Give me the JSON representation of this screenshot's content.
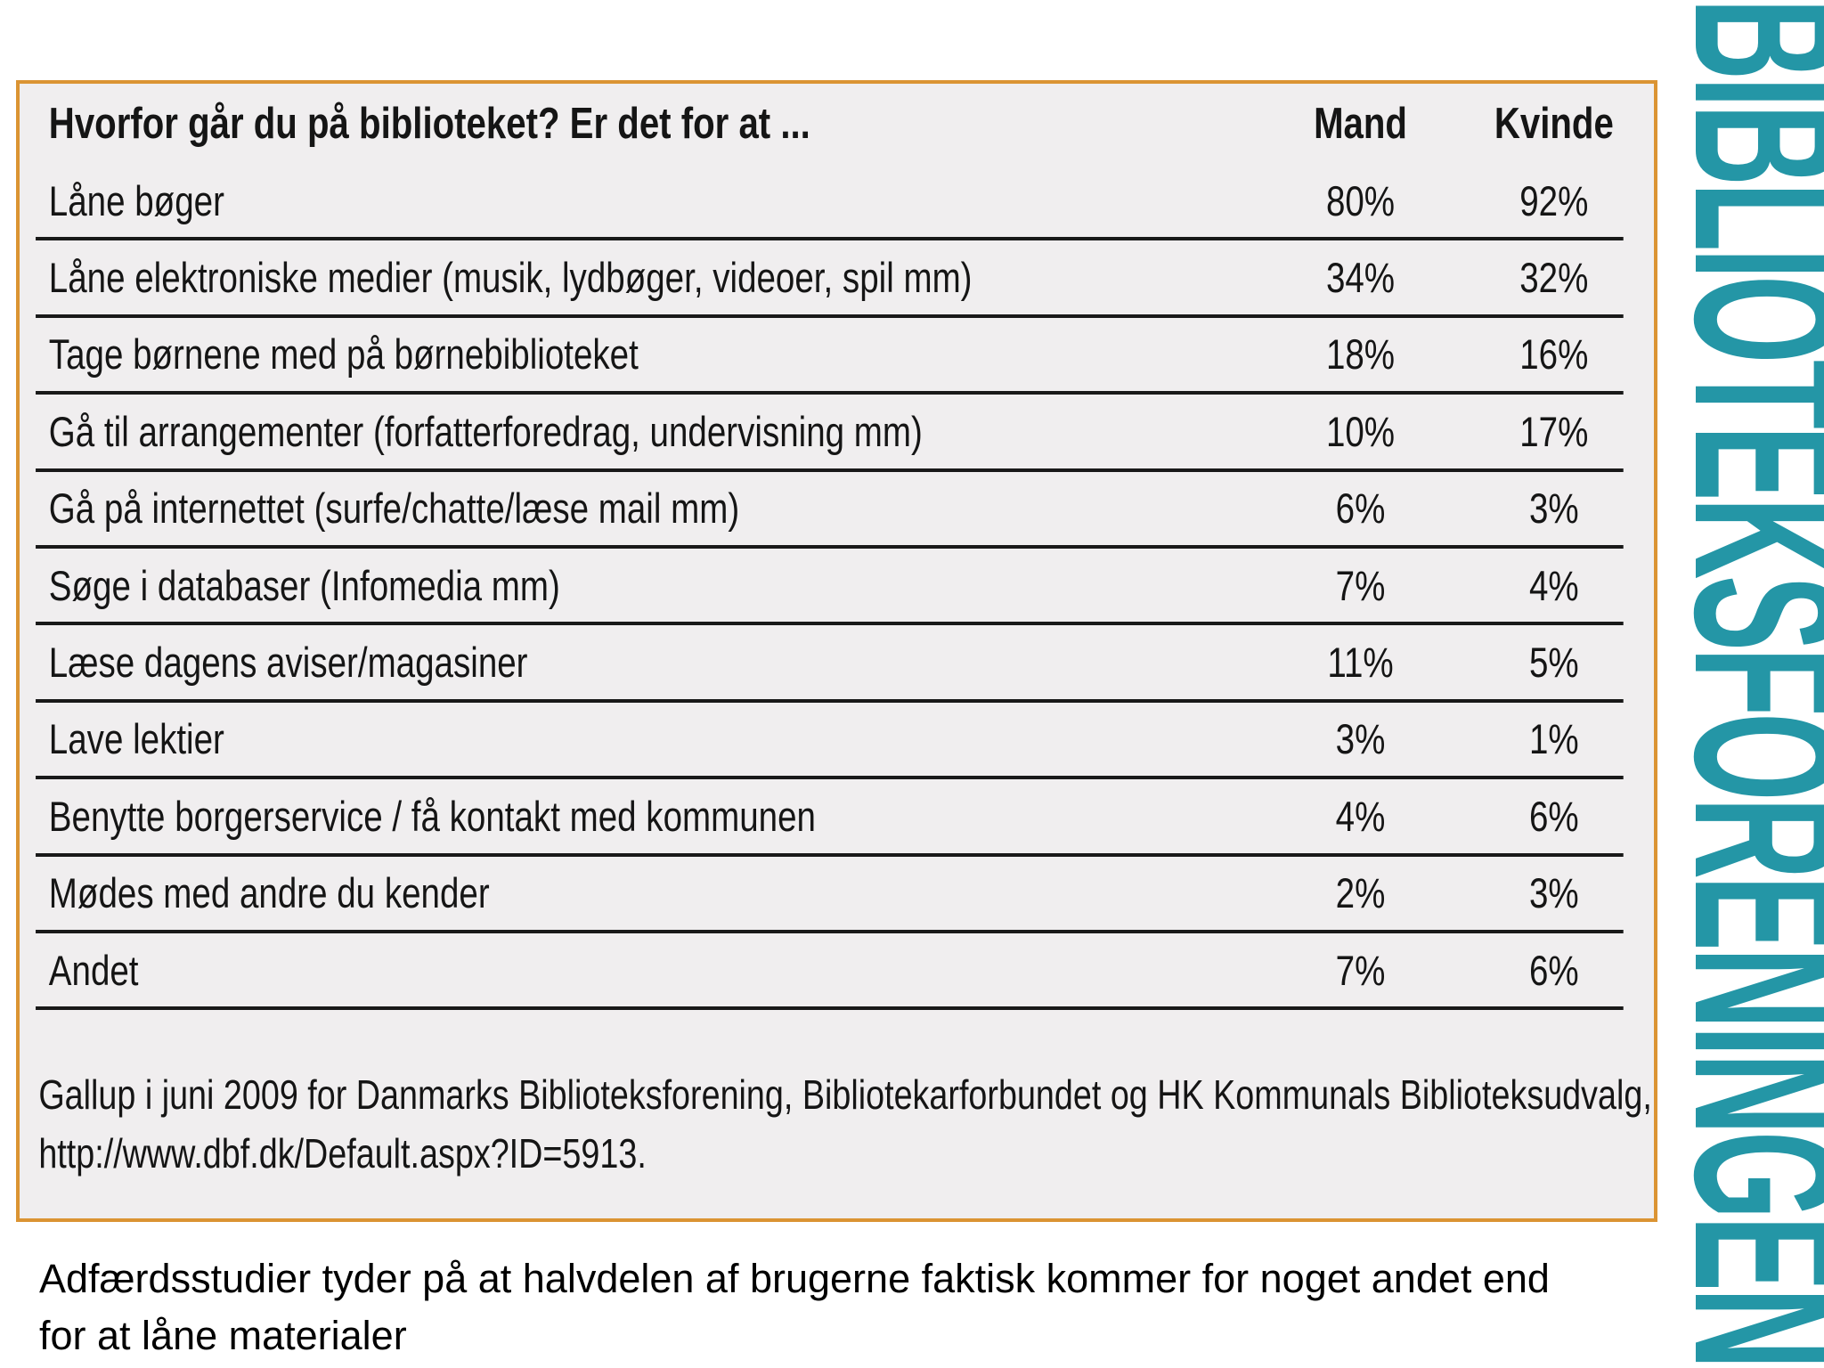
{
  "slide": {
    "table": {
      "title": "Hvorfor går du på biblioteket? Er det for at ...",
      "columns": [
        "Mand",
        "Kvinde"
      ],
      "rows": [
        {
          "label": "Låne bøger",
          "mand": "80%",
          "kvinde": "92%"
        },
        {
          "label": "Låne elektroniske medier (musik, lydbøger, videoer, spil mm)",
          "mand": "34%",
          "kvinde": "32%"
        },
        {
          "label": "Tage børnene med på børnebiblioteket",
          "mand": "18%",
          "kvinde": "16%"
        },
        {
          "label": "Gå til arrangementer (forfatterforedrag, undervisning mm)",
          "mand": "10%",
          "kvinde": "17%"
        },
        {
          "label": "Gå på internettet (surfe/chatte/læse mail mm)",
          "mand": "6%",
          "kvinde": "3%"
        },
        {
          "label": "Søge i databaser (Infomedia mm)",
          "mand": "7%",
          "kvinde": "4%"
        },
        {
          "label": "Læse dagens aviser/magasiner",
          "mand": "11%",
          "kvinde": "5%"
        },
        {
          "label": "Lave lektier",
          "mand": "3%",
          "kvinde": "1%"
        },
        {
          "label": "Benytte borgerservice / få kontakt med kommunen",
          "mand": "4%",
          "kvinde": "6%"
        },
        {
          "label": "Mødes med andre du kender",
          "mand": "2%",
          "kvinde": "3%"
        },
        {
          "label": "Andet",
          "mand": "7%",
          "kvinde": "6%"
        }
      ],
      "source_line1": "Gallup i juni 2009 for Danmarks Biblioteksforening, Bibliotekarforbundet og HK Kommunals Biblioteksudvalg,",
      "source_line2": "http://www.dbf.dk/Default.aspx?ID=5913."
    },
    "caption_line1": "Adfærdsstudier tyder på at halvdelen af brugerne faktisk kommer for noget andet end",
    "caption_line2": "for at låne materialer",
    "logo_text": "BIBLIOTEKSFORENINGEN",
    "colors": {
      "teal": "#2496a6",
      "orange_border": "#db9433",
      "table_bg": "#f0eeef",
      "row_line": "#191919"
    }
  },
  "chart_data": {
    "type": "table",
    "title": "Hvorfor går du på biblioteket? Er det for at ...",
    "columns": [
      "Mand",
      "Kvinde"
    ],
    "categories": [
      "Låne bøger",
      "Låne elektroniske medier (musik, lydbøger, videoer, spil mm)",
      "Tage børnene med på børnebiblioteket",
      "Gå til arrangementer (forfatterforedrag, undervisning mm)",
      "Gå på internettet (surfe/chatte/læse mail mm)",
      "Søge i databaser (Infomedia mm)",
      "Læse dagens aviser/magasiner",
      "Lave lektier",
      "Benytte borgerservice / få kontakt med kommunen",
      "Mødes med andre du kender",
      "Andet"
    ],
    "series": [
      {
        "name": "Mand",
        "values": [
          80,
          34,
          18,
          10,
          6,
          7,
          11,
          3,
          4,
          2,
          7
        ]
      },
      {
        "name": "Kvinde",
        "values": [
          92,
          32,
          16,
          17,
          3,
          4,
          5,
          1,
          6,
          3,
          6
        ]
      }
    ],
    "unit": "%",
    "source": "Gallup i juni 2009 for Danmarks Biblioteksforening, Bibliotekarforbundet og HK Kommunals Biblioteksudvalg, http://www.dbf.dk/Default.aspx?ID=5913."
  }
}
